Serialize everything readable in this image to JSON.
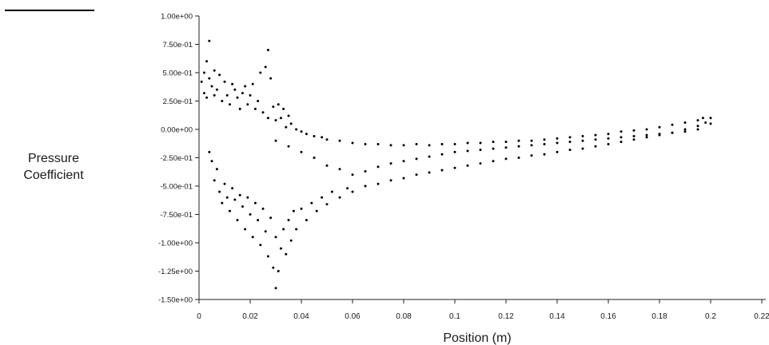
{
  "chart_data": {
    "type": "scatter",
    "xlabel": "Position (m)",
    "ylabel_lines": [
      "Pressure",
      "Coefficient"
    ],
    "xlim": [
      0,
      0.22
    ],
    "ylim": [
      -1.5,
      1.0
    ],
    "x_ticks": [
      0,
      0.02,
      0.04,
      0.06,
      0.08,
      0.1,
      0.12,
      0.14,
      0.16,
      0.18,
      0.2,
      0.22
    ],
    "x_tick_labels": [
      "0",
      "0.02",
      "0.04",
      "0.06",
      "0.08",
      "0.1",
      "0.12",
      "0.14",
      "0.16",
      "0.18",
      "0.2",
      "0.22"
    ],
    "y_ticks": [
      1.0,
      0.75,
      0.5,
      0.25,
      0.0,
      -0.25,
      -0.5,
      -0.75,
      -1.0,
      -1.25,
      -1.5
    ],
    "y_tick_labels": [
      "1.00e+00",
      "7.50e-01",
      "5.00e-01",
      "2.50e-01",
      "0.00e+00",
      "-2.50e-01",
      "-5.00e-01",
      "-7.50e-01",
      "-1.00e+00",
      "-1.25e+00",
      "-1.50e+00"
    ],
    "marker_color": "#000000",
    "series": [
      {
        "points": [
          [
            0.001,
            0.42
          ],
          [
            0.002,
            0.5
          ],
          [
            0.002,
            0.32
          ],
          [
            0.003,
            0.6
          ],
          [
            0.003,
            0.28
          ],
          [
            0.004,
            0.78
          ],
          [
            0.004,
            0.45
          ],
          [
            0.005,
            0.38
          ],
          [
            0.006,
            0.52
          ],
          [
            0.006,
            0.3
          ],
          [
            0.007,
            0.35
          ],
          [
            0.008,
            0.48
          ],
          [
            0.009,
            0.25
          ],
          [
            0.01,
            0.42
          ],
          [
            0.011,
            0.3
          ],
          [
            0.012,
            0.22
          ],
          [
            0.013,
            0.4
          ],
          [
            0.014,
            0.35
          ],
          [
            0.015,
            0.28
          ],
          [
            0.016,
            0.18
          ],
          [
            0.017,
            0.32
          ],
          [
            0.018,
            0.38
          ],
          [
            0.019,
            0.22
          ],
          [
            0.02,
            0.3
          ],
          [
            0.021,
            0.4
          ],
          [
            0.022,
            0.18
          ],
          [
            0.023,
            0.25
          ],
          [
            0.024,
            0.5
          ],
          [
            0.025,
            0.15
          ],
          [
            0.026,
            0.55
          ],
          [
            0.027,
            0.1
          ],
          [
            0.027,
            0.7
          ],
          [
            0.028,
            0.45
          ],
          [
            0.029,
            0.2
          ],
          [
            0.03,
            0.08
          ],
          [
            0.031,
            0.22
          ],
          [
            0.032,
            0.1
          ],
          [
            0.033,
            0.18
          ],
          [
            0.034,
            0.02
          ],
          [
            0.035,
            0.12
          ],
          [
            0.036,
            0.05
          ],
          [
            0.038,
            0.0
          ],
          [
            0.04,
            -0.02
          ],
          [
            0.042,
            -0.04
          ],
          [
            0.045,
            -0.06
          ],
          [
            0.048,
            -0.07
          ],
          [
            0.05,
            -0.09
          ],
          [
            0.055,
            -0.1
          ],
          [
            0.06,
            -0.12
          ],
          [
            0.065,
            -0.13
          ],
          [
            0.07,
            -0.13
          ],
          [
            0.075,
            -0.14
          ],
          [
            0.08,
            -0.14
          ],
          [
            0.085,
            -0.13
          ],
          [
            0.09,
            -0.14
          ],
          [
            0.095,
            -0.13
          ],
          [
            0.1,
            -0.13
          ],
          [
            0.105,
            -0.12
          ],
          [
            0.11,
            -0.12
          ],
          [
            0.115,
            -0.11
          ],
          [
            0.12,
            -0.11
          ],
          [
            0.125,
            -0.1
          ],
          [
            0.13,
            -0.1
          ],
          [
            0.135,
            -0.09
          ],
          [
            0.14,
            -0.08
          ],
          [
            0.145,
            -0.07
          ],
          [
            0.15,
            -0.06
          ],
          [
            0.155,
            -0.05
          ],
          [
            0.16,
            -0.04
          ],
          [
            0.165,
            -0.02
          ],
          [
            0.17,
            -0.01
          ],
          [
            0.175,
            0.0
          ],
          [
            0.18,
            0.02
          ],
          [
            0.185,
            0.04
          ],
          [
            0.19,
            0.06
          ],
          [
            0.195,
            0.08
          ],
          [
            0.197,
            0.1
          ],
          [
            0.2,
            0.05
          ],
          [
            0.2,
            0.1
          ],
          [
            0.004,
            -0.2
          ],
          [
            0.005,
            -0.28
          ],
          [
            0.006,
            -0.45
          ],
          [
            0.007,
            -0.35
          ],
          [
            0.008,
            -0.55
          ],
          [
            0.009,
            -0.65
          ],
          [
            0.01,
            -0.48
          ],
          [
            0.011,
            -0.6
          ],
          [
            0.012,
            -0.72
          ],
          [
            0.013,
            -0.52
          ],
          [
            0.014,
            -0.62
          ],
          [
            0.015,
            -0.8
          ],
          [
            0.016,
            -0.58
          ],
          [
            0.017,
            -0.68
          ],
          [
            0.018,
            -0.88
          ],
          [
            0.019,
            -0.6
          ],
          [
            0.02,
            -0.75
          ],
          [
            0.021,
            -0.95
          ],
          [
            0.022,
            -0.65
          ],
          [
            0.023,
            -0.8
          ],
          [
            0.024,
            -1.02
          ],
          [
            0.025,
            -0.7
          ],
          [
            0.026,
            -0.9
          ],
          [
            0.027,
            -1.12
          ],
          [
            0.028,
            -0.78
          ],
          [
            0.029,
            -1.22
          ],
          [
            0.03,
            -1.4
          ],
          [
            0.03,
            -0.95
          ],
          [
            0.031,
            -1.25
          ],
          [
            0.032,
            -1.05
          ],
          [
            0.033,
            -0.88
          ],
          [
            0.034,
            -1.1
          ],
          [
            0.035,
            -0.8
          ],
          [
            0.036,
            -0.98
          ],
          [
            0.037,
            -0.72
          ],
          [
            0.038,
            -0.88
          ],
          [
            0.04,
            -0.7
          ],
          [
            0.042,
            -0.8
          ],
          [
            0.044,
            -0.65
          ],
          [
            0.046,
            -0.72
          ],
          [
            0.048,
            -0.6
          ],
          [
            0.05,
            -0.66
          ],
          [
            0.052,
            -0.55
          ],
          [
            0.055,
            -0.6
          ],
          [
            0.058,
            -0.52
          ],
          [
            0.06,
            -0.55
          ],
          [
            0.065,
            -0.5
          ],
          [
            0.07,
            -0.48
          ],
          [
            0.075,
            -0.45
          ],
          [
            0.08,
            -0.43
          ],
          [
            0.085,
            -0.4
          ],
          [
            0.09,
            -0.38
          ],
          [
            0.095,
            -0.36
          ],
          [
            0.1,
            -0.34
          ],
          [
            0.105,
            -0.32
          ],
          [
            0.11,
            -0.3
          ],
          [
            0.115,
            -0.28
          ],
          [
            0.12,
            -0.26
          ],
          [
            0.125,
            -0.25
          ],
          [
            0.13,
            -0.23
          ],
          [
            0.135,
            -0.22
          ],
          [
            0.14,
            -0.2
          ],
          [
            0.145,
            -0.18
          ],
          [
            0.15,
            -0.17
          ],
          [
            0.155,
            -0.15
          ],
          [
            0.16,
            -0.13
          ],
          [
            0.165,
            -0.11
          ],
          [
            0.17,
            -0.09
          ],
          [
            0.175,
            -0.07
          ],
          [
            0.18,
            -0.05
          ],
          [
            0.185,
            -0.03
          ],
          [
            0.19,
            0.0
          ],
          [
            0.195,
            0.03
          ],
          [
            0.198,
            0.06
          ],
          [
            0.03,
            -0.1
          ],
          [
            0.035,
            -0.15
          ],
          [
            0.04,
            -0.2
          ],
          [
            0.045,
            -0.25
          ],
          [
            0.05,
            -0.32
          ],
          [
            0.055,
            -0.35
          ],
          [
            0.06,
            -0.4
          ],
          [
            0.065,
            -0.37
          ],
          [
            0.07,
            -0.33
          ],
          [
            0.075,
            -0.3
          ],
          [
            0.08,
            -0.28
          ],
          [
            0.085,
            -0.26
          ],
          [
            0.09,
            -0.24
          ],
          [
            0.095,
            -0.22
          ],
          [
            0.1,
            -0.2
          ],
          [
            0.105,
            -0.19
          ],
          [
            0.11,
            -0.18
          ],
          [
            0.115,
            -0.17
          ],
          [
            0.12,
            -0.16
          ],
          [
            0.125,
            -0.15
          ],
          [
            0.13,
            -0.14
          ],
          [
            0.135,
            -0.13
          ],
          [
            0.14,
            -0.12
          ],
          [
            0.145,
            -0.11
          ],
          [
            0.15,
            -0.1
          ],
          [
            0.155,
            -0.09
          ],
          [
            0.16,
            -0.08
          ],
          [
            0.165,
            -0.07
          ],
          [
            0.17,
            -0.06
          ],
          [
            0.175,
            -0.05
          ],
          [
            0.18,
            -0.04
          ],
          [
            0.185,
            -0.03
          ],
          [
            0.19,
            -0.02
          ],
          [
            0.195,
            0.0
          ]
        ]
      }
    ]
  }
}
